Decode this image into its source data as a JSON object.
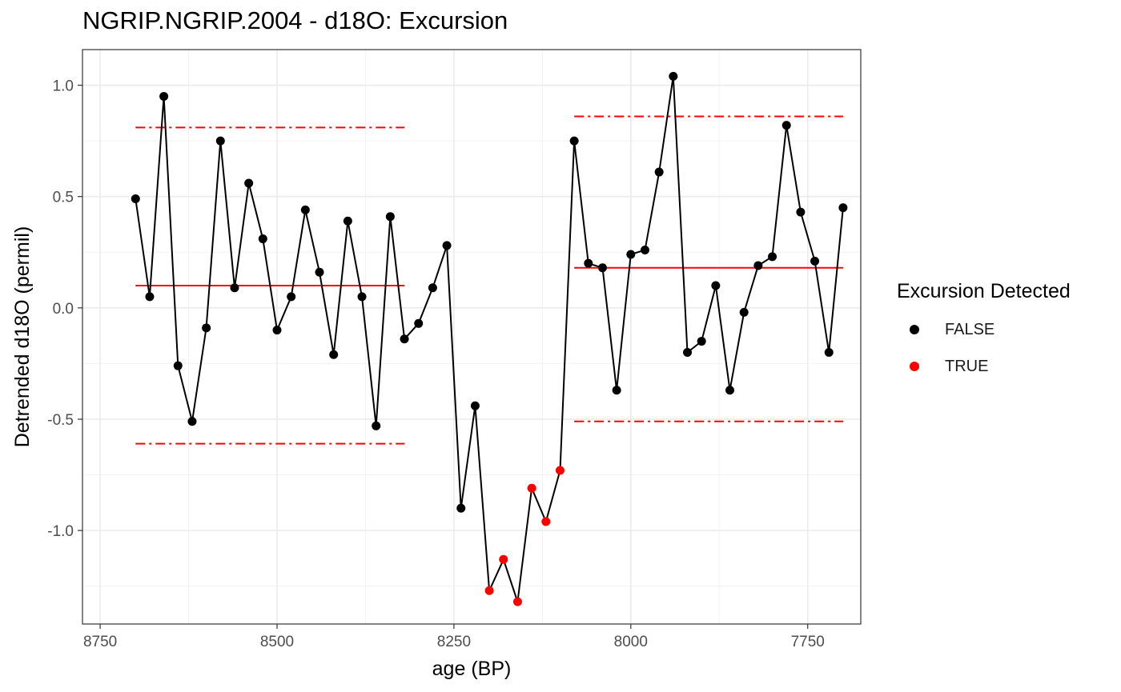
{
  "chart_data": {
    "type": "scatter",
    "title": "NGRIP.NGRIP.2004 - d18O: Excursion",
    "xlabel": "age (BP)",
    "ylabel": "Detrended d18O (permil)",
    "x_reversed": true,
    "xlim": [
      8775,
      7675
    ],
    "ylim": [
      -1.42,
      1.16
    ],
    "x_ticks": [
      8750,
      8500,
      8250,
      8000,
      7750
    ],
    "x_tick_labels": [
      "8750",
      "8500",
      "8250",
      "8000",
      "7750"
    ],
    "y_ticks": [
      1.0,
      0.5,
      0.0,
      -0.5,
      -1.0
    ],
    "y_tick_labels": [
      "1.0",
      "0.5",
      "0.0",
      "-0.5",
      "-1.0"
    ],
    "grid": true,
    "legend": {
      "title": "Excursion Detected",
      "position": "right",
      "entries": [
        {
          "label": "FALSE",
          "color": "#000000"
        },
        {
          "label": "TRUE",
          "color": "#ff0000"
        }
      ]
    },
    "series": [
      {
        "x": [
          8700,
          8680,
          8660,
          8640,
          8620,
          8600,
          8580,
          8560,
          8540,
          8520,
          8500,
          8480,
          8460,
          8440,
          8420,
          8400,
          8380,
          8360,
          8340,
          8320,
          8300,
          8280,
          8260,
          8240,
          8220,
          8200,
          8180,
          8160,
          8140,
          8120,
          8100,
          8080,
          8060,
          8040,
          8020,
          8000,
          7980,
          7960,
          7940,
          7920,
          7900,
          7880,
          7860,
          7840,
          7820,
          7800,
          7780,
          7760,
          7740,
          7720,
          7700
        ],
        "y": [
          0.49,
          0.05,
          0.95,
          -0.26,
          -0.51,
          -0.09,
          0.75,
          0.09,
          0.56,
          0.31,
          -0.1,
          0.05,
          0.44,
          0.16,
          -0.21,
          0.39,
          0.05,
          -0.53,
          0.41,
          -0.14,
          -0.07,
          0.09,
          0.28,
          -0.9,
          -0.44,
          -1.27,
          -1.13,
          -1.32,
          -0.81,
          -0.96,
          -0.73,
          0.75,
          0.2,
          0.18,
          -0.37,
          0.24,
          0.26,
          0.61,
          1.04,
          -0.2,
          -0.15,
          0.1,
          -0.37,
          -0.02,
          0.19,
          0.23,
          0.82,
          0.43,
          0.21,
          -0.2,
          0.45
        ],
        "excursion": [
          false,
          false,
          false,
          false,
          false,
          false,
          false,
          false,
          false,
          false,
          false,
          false,
          false,
          false,
          false,
          false,
          false,
          false,
          false,
          false,
          false,
          false,
          false,
          false,
          false,
          true,
          true,
          true,
          true,
          true,
          true,
          false,
          false,
          false,
          false,
          false,
          false,
          false,
          false,
          false,
          false,
          false,
          false,
          false,
          false,
          false,
          false,
          false,
          false,
          false,
          false
        ]
      }
    ],
    "reference_lines": [
      {
        "kind": "mean",
        "style": "solid",
        "color": "#ff0000",
        "x_from": 8700,
        "x_to": 8320,
        "y": 0.1
      },
      {
        "kind": "upper",
        "style": "dotdash",
        "color": "#ff0000",
        "x_from": 8700,
        "x_to": 8320,
        "y": 0.81
      },
      {
        "kind": "lower",
        "style": "dotdash",
        "color": "#ff0000",
        "x_from": 8700,
        "x_to": 8320,
        "y": -0.61
      },
      {
        "kind": "mean",
        "style": "solid",
        "color": "#ff0000",
        "x_from": 8080,
        "x_to": 7700,
        "y": 0.18
      },
      {
        "kind": "upper",
        "style": "dotdash",
        "color": "#ff0000",
        "x_from": 8080,
        "x_to": 7700,
        "y": 0.86
      },
      {
        "kind": "lower",
        "style": "dotdash",
        "color": "#ff0000",
        "x_from": 8080,
        "x_to": 7700,
        "y": -0.51
      }
    ]
  }
}
